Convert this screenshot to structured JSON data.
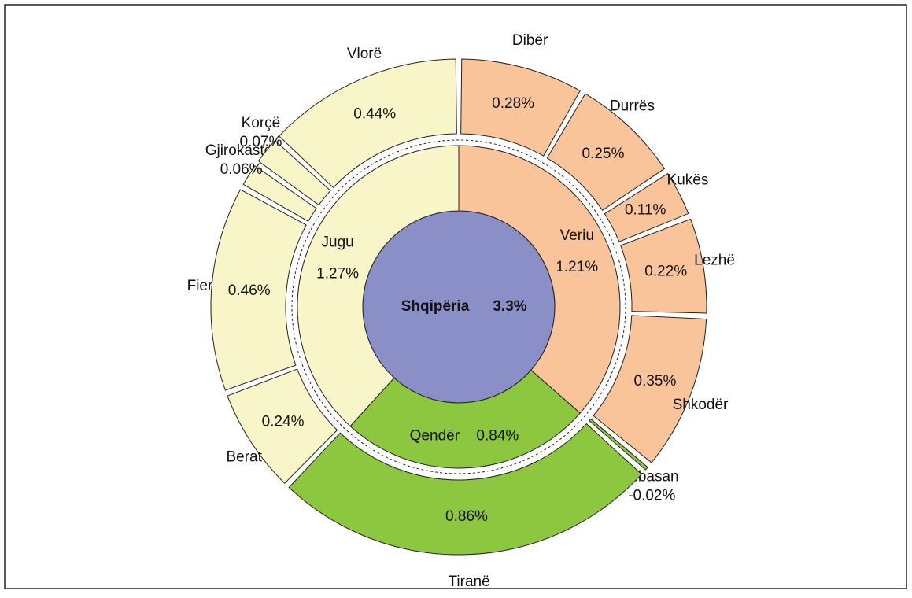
{
  "chart_data": {
    "type": "sunburst",
    "root": {
      "name": "Shqipëria",
      "value": 3.3,
      "value_label": "3.3%",
      "color": "#8b8fc7"
    },
    "children": [
      {
        "name": "Veriu",
        "value": 1.21,
        "value_label": "1.21%",
        "color": "#f9c49a",
        "children": [
          {
            "name": "Dibër",
            "value": 0.28,
            "value_label": "0.28%"
          },
          {
            "name": "Durrës",
            "value": 0.25,
            "value_label": "0.25%"
          },
          {
            "name": "Kukës",
            "value": 0.11,
            "value_label": "0.11%"
          },
          {
            "name": "Lezhë",
            "value": 0.22,
            "value_label": "0.22%"
          },
          {
            "name": "Shkodër",
            "value": 0.35,
            "value_label": "0.35%"
          },
          {
            "name": "Elbasan",
            "value": -0.02,
            "value_label": "-0.02%",
            "color": "#8dc63f"
          }
        ]
      },
      {
        "name": "Qendër",
        "value": 0.84,
        "value_label": "0.84%",
        "color": "#8dc63f",
        "children": [
          {
            "name": "Tiranë",
            "value": 0.86,
            "value_label": "0.86%"
          }
        ]
      },
      {
        "name": "Jugu",
        "value": 1.27,
        "value_label": "1.27%",
        "color": "#f8f6c8",
        "children": [
          {
            "name": "Berat",
            "value": 0.24,
            "value_label": "0.24%"
          },
          {
            "name": "Fier",
            "value": 0.46,
            "value_label": "0.46%"
          },
          {
            "name": "Gjirokastër",
            "value": 0.06,
            "value_label": "0.06%"
          },
          {
            "name": "Korçë",
            "value": 0.07,
            "value_label": "0.07%"
          },
          {
            "name": "Vlorë",
            "value": 0.44,
            "value_label": "0.44%"
          }
        ]
      }
    ]
  }
}
